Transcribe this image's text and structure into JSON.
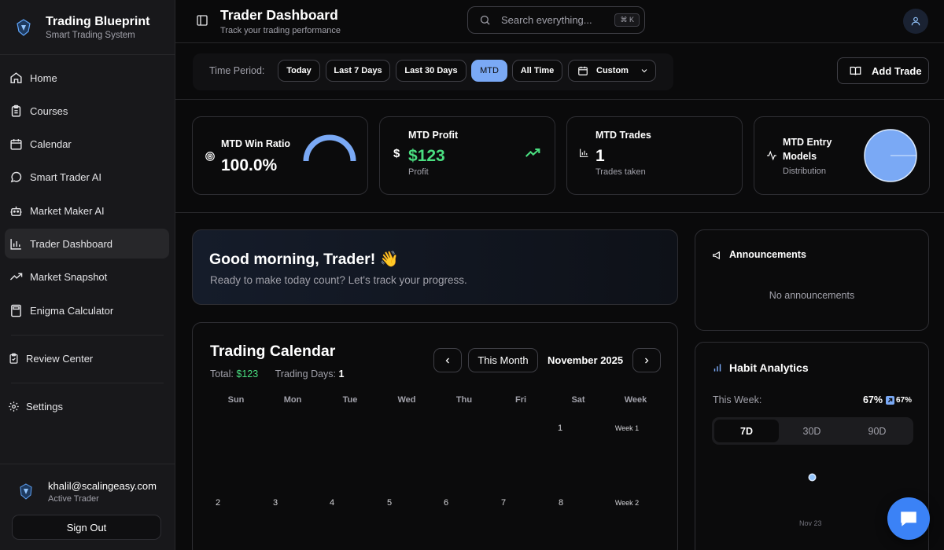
{
  "brand": {
    "title": "Trading Blueprint",
    "subtitle": "Smart Trading System"
  },
  "sidebar": {
    "items": [
      {
        "label": "Home",
        "icon": "home-icon"
      },
      {
        "label": "Courses",
        "icon": "clipboard-icon"
      },
      {
        "label": "Calendar",
        "icon": "calendar-icon"
      },
      {
        "label": "Smart Trader AI",
        "icon": "chat-bubble-icon"
      },
      {
        "label": "Market Maker AI",
        "icon": "bot-icon"
      },
      {
        "label": "Trader Dashboard",
        "icon": "bar-chart-icon",
        "active": true
      },
      {
        "label": "Market Snapshot",
        "icon": "trend-up-icon"
      },
      {
        "label": "Enigma Calculator",
        "icon": "calculator-icon"
      }
    ],
    "review_center": "Review Center",
    "settings": "Settings",
    "user": {
      "email": "khalil@scalingeasy.com",
      "role": "Active Trader"
    },
    "sign_out": "Sign Out"
  },
  "header": {
    "title": "Trader Dashboard",
    "subtitle": "Track your trading performance",
    "search_placeholder": "Search everything...",
    "search_shortcut": "⌘ K"
  },
  "filters": {
    "label": "Time Period:",
    "options": [
      "Today",
      "Last 7 Days",
      "Last 30 Days",
      "MTD",
      "All Time",
      "Custom"
    ],
    "active": "MTD",
    "add_trade": "Add Trade"
  },
  "stats": {
    "win_ratio": {
      "title": "MTD Win Ratio",
      "value": "100.0%",
      "gauge_fraction": 1.0
    },
    "profit": {
      "title": "MTD Profit",
      "value": "$123",
      "sub": "Profit",
      "currency_symbol": "$"
    },
    "trades": {
      "title": "MTD Trades",
      "value": "1",
      "sub": "Trades taken"
    },
    "entry_models": {
      "title_line1": "MTD Entry",
      "title_line2": "Models",
      "sub": "Distribution",
      "pie_color": "#7aa9f5"
    }
  },
  "greeting": {
    "title": "Good morning, Trader! 👋",
    "subtitle": "Ready to make today count? Let's track your progress."
  },
  "calendar": {
    "title": "Trading Calendar",
    "total_label": "Total:",
    "total_value": "$123",
    "days_label": "Trading Days:",
    "days_value": "1",
    "this_month": "This Month",
    "month": "November 2025",
    "weekdays": [
      "Sun",
      "Mon",
      "Tue",
      "Wed",
      "Thu",
      "Fri",
      "Sat",
      "Week"
    ],
    "week1": {
      "days": [
        "",
        "",
        "",
        "",
        "",
        "",
        "1"
      ],
      "label": "Week 1"
    },
    "week2": {
      "days": [
        "2",
        "3",
        "4",
        "5",
        "6",
        "7",
        "8"
      ],
      "label": "Week 2"
    }
  },
  "announcements": {
    "title": "Announcements",
    "empty": "No announcements"
  },
  "habit": {
    "title": "Habit Analytics",
    "this_week": "This Week:",
    "pct": "67%",
    "pct_change": "67%",
    "ranges": [
      "7D",
      "30D",
      "90D"
    ],
    "active_range": "7D",
    "date_label": "Nov 23"
  },
  "colors": {
    "accent": "#7aa9f5",
    "profit": "#4ade80",
    "chat": "#3b82f6"
  }
}
